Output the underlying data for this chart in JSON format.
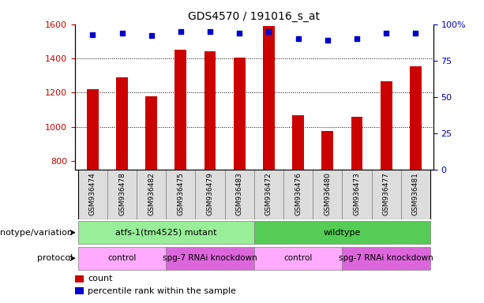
{
  "title": "GDS4570 / 191016_s_at",
  "samples": [
    "GSM936474",
    "GSM936478",
    "GSM936482",
    "GSM936475",
    "GSM936479",
    "GSM936483",
    "GSM936472",
    "GSM936476",
    "GSM936480",
    "GSM936473",
    "GSM936477",
    "GSM936481"
  ],
  "counts": [
    1220,
    1290,
    1180,
    1450,
    1440,
    1405,
    1590,
    1070,
    975,
    1060,
    1265,
    1355
  ],
  "percentile_ranks": [
    93,
    94,
    92,
    95,
    95,
    94,
    95,
    90,
    89,
    90,
    94,
    94
  ],
  "ylim_left": [
    750,
    1600
  ],
  "ylim_right": [
    0,
    100
  ],
  "yticks_left": [
    800,
    1000,
    1200,
    1400,
    1600
  ],
  "yticks_right": [
    0,
    25,
    50,
    75,
    100
  ],
  "bar_color": "#cc0000",
  "scatter_color": "#0000cc",
  "genotype_groups": [
    {
      "label": "atfs-1(tm4525) mutant",
      "start": 0,
      "end": 6,
      "color": "#99ee99"
    },
    {
      "label": "wildtype",
      "start": 6,
      "end": 12,
      "color": "#55cc55"
    }
  ],
  "protocol_groups": [
    {
      "label": "control",
      "start": 0,
      "end": 3,
      "color": "#ffaaff"
    },
    {
      "label": "spg-7 RNAi knockdown",
      "start": 3,
      "end": 6,
      "color": "#dd66dd"
    },
    {
      "label": "control",
      "start": 6,
      "end": 9,
      "color": "#ffaaff"
    },
    {
      "label": "spg-7 RNAi knockdown",
      "start": 9,
      "end": 12,
      "color": "#dd66dd"
    }
  ],
  "legend_count_color": "#cc0000",
  "legend_pct_color": "#0000cc",
  "ylabel_left_color": "#cc0000",
  "ylabel_right_color": "#0000cc",
  "label_genotype": "genotype/variation",
  "label_protocol": "protocol",
  "label_count": "count",
  "label_pct": "percentile rank within the sample",
  "grid_yticks": [
    1000,
    1200,
    1400
  ],
  "xtick_bg": "#dddddd",
  "bar_width": 0.4
}
